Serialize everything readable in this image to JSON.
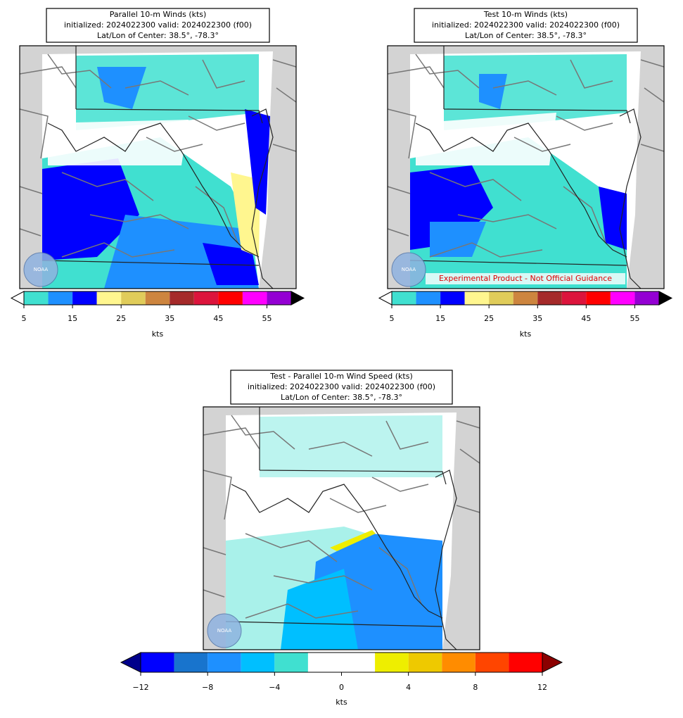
{
  "panels": [
    {
      "title": [
        "Parallel 10-m Winds (kts)",
        "initialized: 2024022300 valid: 2024022300 (f00)",
        "Lat/Lon of Center: 38.5°, -78.3°"
      ],
      "colorbar": {
        "bounds": [
          5,
          10,
          15,
          20,
          25,
          30,
          35,
          40,
          45,
          50,
          55,
          60
        ],
        "colors": [
          "#40e0d0",
          "#1e90ff",
          "#0000ff",
          "#fff68f",
          "#e0cc5a",
          "#cd853f",
          "#a52a2a",
          "#dc143c",
          "#ff0000",
          "#ff00ff",
          "#9400d3"
        ],
        "under": "#ffffff",
        "over": "#000000",
        "ticks": [
          5,
          15,
          25,
          35,
          45,
          55
        ],
        "label": "kts"
      }
    },
    {
      "title": [
        "Test 10-m Winds (kts)",
        "initialized: 2024022300 valid: 2024022300 (f00)",
        "Lat/Lon of Center: 38.5°, -78.3°"
      ],
      "annotation": "Experimental Product - Not Official Guidance",
      "colorbar": {
        "bounds": [
          5,
          10,
          15,
          20,
          25,
          30,
          35,
          40,
          45,
          50,
          55,
          60
        ],
        "colors": [
          "#40e0d0",
          "#1e90ff",
          "#0000ff",
          "#fff68f",
          "#e0cc5a",
          "#cd853f",
          "#a52a2a",
          "#dc143c",
          "#ff0000",
          "#ff00ff",
          "#9400d3"
        ],
        "under": "#ffffff",
        "over": "#000000",
        "ticks": [
          5,
          15,
          25,
          35,
          45,
          55
        ],
        "label": "kts"
      }
    },
    {
      "title": [
        "Test - Parallel 10-m Wind Speed (kts)",
        "initialized: 2024022300 valid: 2024022300 (f00)",
        "Lat/Lon of Center: 38.5°, -78.3°"
      ],
      "colorbar": {
        "bounds": [
          -12,
          -10,
          -8,
          -6,
          -4,
          -2,
          0,
          2,
          4,
          6,
          8,
          10,
          12
        ],
        "colors": [
          "#0000ff",
          "#1874cd",
          "#1e90ff",
          "#00bfff",
          "#40e0d0",
          "#ffffff",
          "#ffffff",
          "#eeee00",
          "#eec900",
          "#ff8c00",
          "#ff4500",
          "#ff0000"
        ],
        "under": "#00008b",
        "over": "#8b0000",
        "ticks": [
          {
            "value": -12,
            "label": "−12"
          },
          {
            "value": -8,
            "label": "−8"
          },
          {
            "value": -4,
            "label": "−4"
          },
          0,
          4,
          8,
          12
        ],
        "label": "kts"
      }
    }
  ]
}
